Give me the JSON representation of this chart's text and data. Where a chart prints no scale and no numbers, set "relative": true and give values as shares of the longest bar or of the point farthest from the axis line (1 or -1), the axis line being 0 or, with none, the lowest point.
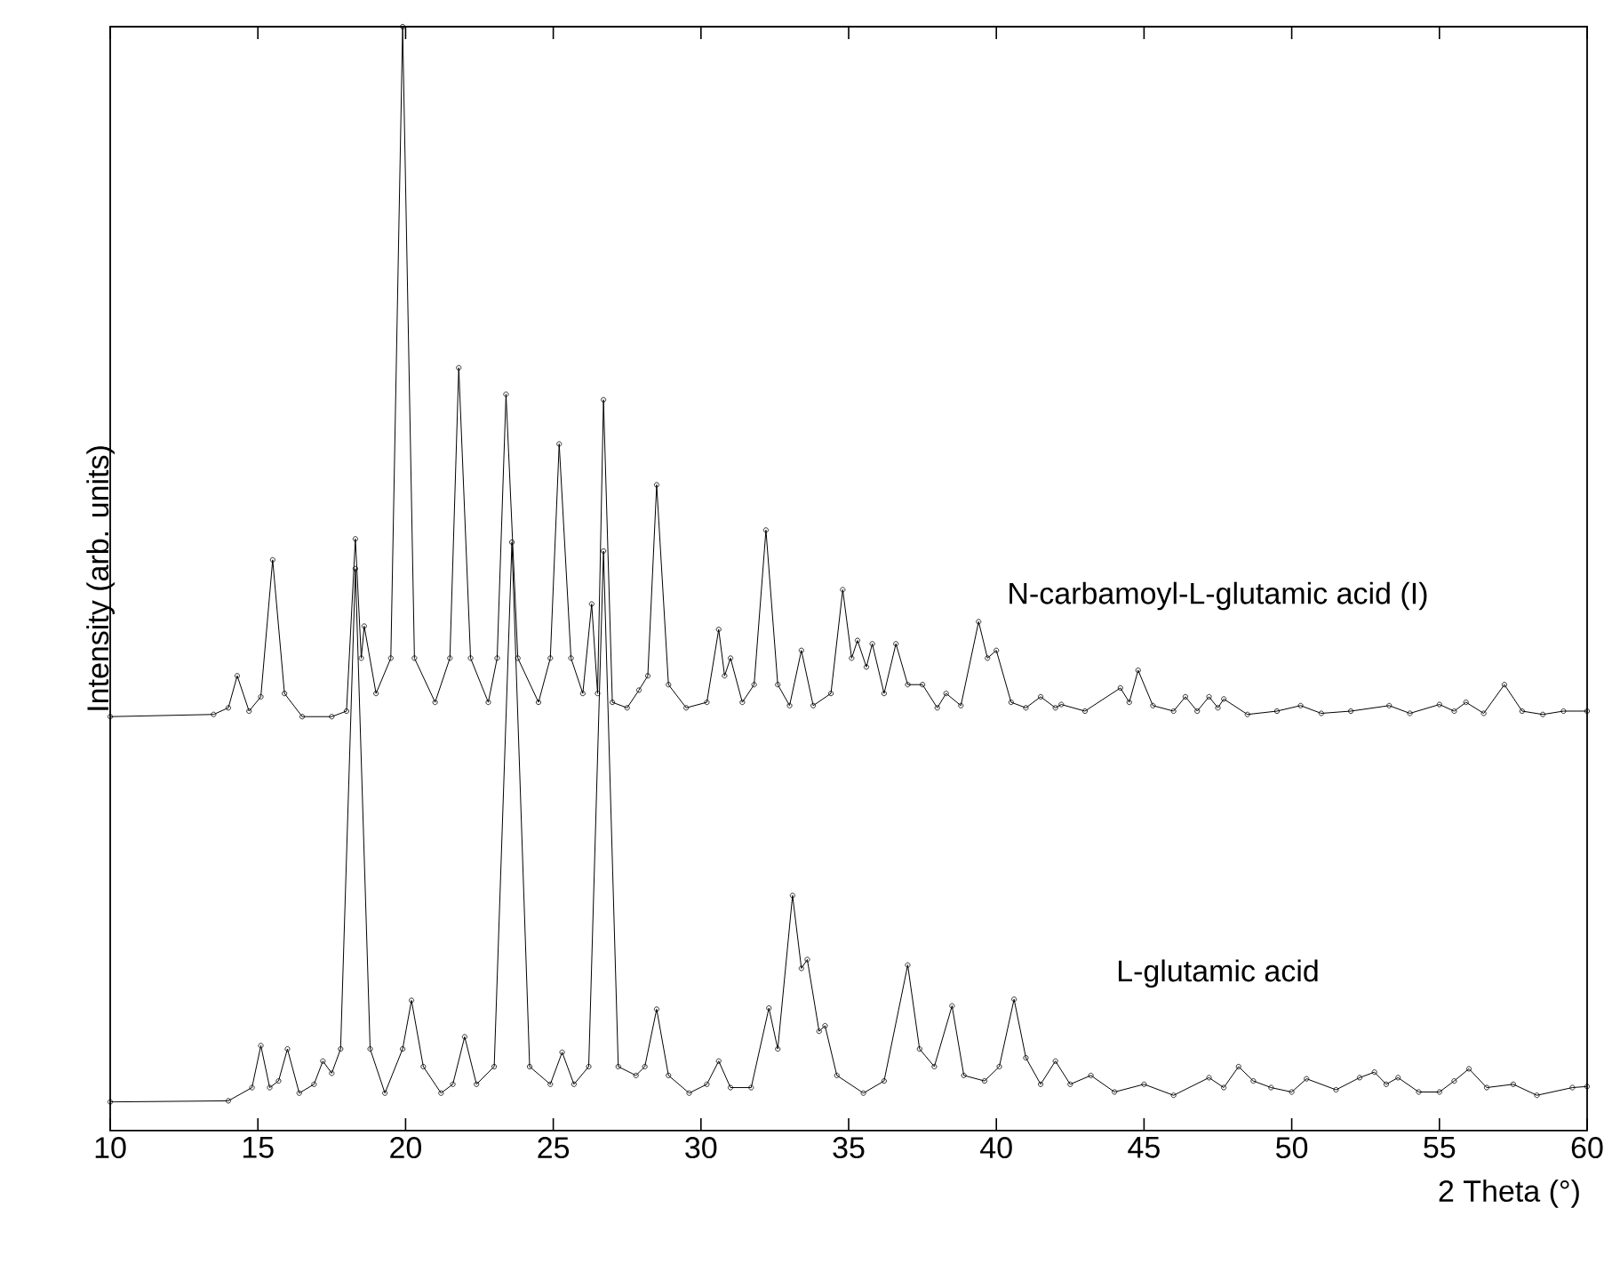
{
  "chart_data": {
    "type": "line",
    "relative": true,
    "xlabel": "2 Theta (°)",
    "ylabel": "Intensity (arb. units)",
    "xlim": [
      10,
      60
    ],
    "xticks": [
      10,
      15,
      20,
      25,
      30,
      35,
      40,
      45,
      50,
      55,
      60
    ],
    "marker": "circle",
    "line_style": "solid",
    "series": [
      {
        "name": "N-carbamoyl-L-glutamic acid (I)",
        "color": "#000000",
        "x": [
          10,
          13.5,
          14.0,
          14.3,
          14.7,
          15.1,
          15.5,
          15.9,
          16.5,
          17.5,
          18.0,
          18.3,
          18.5,
          18.6,
          19.0,
          19.5,
          19.9,
          20.3,
          21.0,
          21.5,
          21.8,
          22.2,
          22.8,
          23.1,
          23.4,
          23.8,
          24.5,
          24.9,
          25.2,
          25.6,
          26.0,
          26.3,
          26.5,
          26.7,
          27.0,
          27.5,
          27.9,
          28.2,
          28.5,
          28.9,
          29.5,
          30.2,
          30.6,
          30.8,
          31.0,
          31.4,
          31.8,
          32.2,
          32.6,
          33.0,
          33.4,
          33.8,
          34.4,
          34.8,
          35.1,
          35.3,
          35.6,
          35.8,
          36.2,
          36.6,
          37.0,
          37.5,
          38.0,
          38.3,
          38.8,
          39.4,
          39.7,
          40.0,
          40.5,
          41.0,
          41.5,
          42.0,
          42.2,
          43.0,
          44.2,
          44.5,
          44.8,
          45.3,
          46.0,
          46.4,
          46.8,
          47.2,
          47.5,
          47.7,
          48.5,
          49.5,
          50.3,
          51.0,
          52.0,
          53.3,
          54.0,
          55.0,
          55.5,
          55.9,
          56.5,
          57.2,
          57.8,
          58.5,
          59.2,
          60
        ],
        "values": [
          0.375,
          0.377,
          0.383,
          0.412,
          0.38,
          0.393,
          0.517,
          0.396,
          0.375,
          0.375,
          0.38,
          0.536,
          0.428,
          0.457,
          0.396,
          0.428,
          1.0,
          0.428,
          0.388,
          0.428,
          0.691,
          0.428,
          0.388,
          0.428,
          0.667,
          0.428,
          0.388,
          0.428,
          0.622,
          0.428,
          0.396,
          0.477,
          0.396,
          0.662,
          0.388,
          0.383,
          0.399,
          0.412,
          0.585,
          0.404,
          0.383,
          0.388,
          0.454,
          0.412,
          0.428,
          0.388,
          0.404,
          0.544,
          0.404,
          0.385,
          0.435,
          0.385,
          0.396,
          0.49,
          0.428,
          0.444,
          0.42,
          0.441,
          0.396,
          0.441,
          0.404,
          0.404,
          0.383,
          0.396,
          0.385,
          0.461,
          0.428,
          0.435,
          0.388,
          0.383,
          0.393,
          0.383,
          0.386,
          0.38,
          0.401,
          0.388,
          0.417,
          0.385,
          0.38,
          0.393,
          0.38,
          0.393,
          0.383,
          0.391,
          0.377,
          0.38,
          0.385,
          0.378,
          0.38,
          0.385,
          0.378,
          0.386,
          0.38,
          0.388,
          0.378,
          0.404,
          0.38,
          0.377,
          0.38,
          0.38
        ]
      },
      {
        "name": "L-glutamic acid",
        "color": "#000000",
        "x": [
          10,
          14.0,
          14.8,
          15.1,
          15.4,
          15.7,
          16.0,
          16.4,
          16.9,
          17.2,
          17.5,
          17.8,
          18.3,
          18.8,
          19.3,
          19.9,
          20.2,
          20.6,
          21.2,
          21.6,
          22.0,
          22.4,
          23.0,
          23.6,
          24.2,
          24.9,
          25.3,
          25.7,
          26.2,
          26.7,
          27.2,
          27.8,
          28.1,
          28.5,
          28.9,
          29.6,
          30.2,
          30.6,
          31.0,
          31.7,
          32.3,
          32.6,
          33.1,
          33.4,
          33.6,
          34.0,
          34.2,
          34.6,
          35.5,
          36.2,
          37.0,
          37.4,
          37.9,
          38.5,
          38.9,
          39.6,
          40.1,
          40.6,
          41.0,
          41.5,
          42.0,
          42.5,
          43.2,
          44.0,
          45.0,
          46.0,
          47.2,
          47.7,
          48.2,
          48.7,
          49.3,
          50.0,
          50.5,
          51.5,
          52.3,
          52.8,
          53.2,
          53.6,
          54.3,
          55.0,
          55.5,
          56.0,
          56.6,
          57.5,
          58.3,
          59.5,
          60
        ],
        "values": [
          0.026,
          0.027,
          0.039,
          0.077,
          0.039,
          0.045,
          0.074,
          0.034,
          0.042,
          0.063,
          0.052,
          0.074,
          0.509,
          0.074,
          0.034,
          0.074,
          0.118,
          0.058,
          0.034,
          0.042,
          0.085,
          0.042,
          0.058,
          0.533,
          0.058,
          0.042,
          0.071,
          0.042,
          0.058,
          0.525,
          0.058,
          0.05,
          0.058,
          0.11,
          0.05,
          0.034,
          0.042,
          0.063,
          0.039,
          0.039,
          0.111,
          0.074,
          0.213,
          0.147,
          0.155,
          0.09,
          0.095,
          0.05,
          0.034,
          0.045,
          0.15,
          0.074,
          0.058,
          0.113,
          0.05,
          0.045,
          0.058,
          0.119,
          0.066,
          0.042,
          0.063,
          0.042,
          0.05,
          0.035,
          0.042,
          0.032,
          0.048,
          0.039,
          0.058,
          0.045,
          0.039,
          0.035,
          0.047,
          0.037,
          0.048,
          0.053,
          0.042,
          0.048,
          0.035,
          0.035,
          0.045,
          0.056,
          0.039,
          0.042,
          0.032,
          0.039,
          0.04
        ]
      }
    ]
  }
}
